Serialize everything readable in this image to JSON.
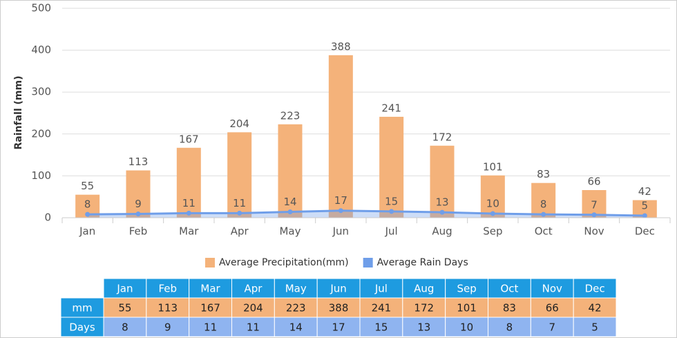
{
  "chart_data": {
    "type": "bar",
    "y_label": "Rainfall (mm)",
    "categories": [
      "Jan",
      "Feb",
      "Mar",
      "Apr",
      "May",
      "Jun",
      "Jul",
      "Aug",
      "Sep",
      "Oct",
      "Nov",
      "Dec"
    ],
    "series": [
      {
        "name": "Average Precipitation(mm)",
        "type": "bar",
        "color": "#f4b27a",
        "values": [
          55,
          113,
          167,
          204,
          223,
          388,
          241,
          172,
          101,
          83,
          66,
          42
        ]
      },
      {
        "name": "Average Rain Days",
        "type": "area",
        "color": "#6f9ee9",
        "values": [
          8,
          9,
          11,
          11,
          14,
          17,
          15,
          13,
          10,
          8,
          7,
          5
        ]
      }
    ],
    "ylim": [
      0,
      500
    ],
    "yticks": [
      0,
      100,
      200,
      300,
      400,
      500
    ],
    "grid": true,
    "legend": "bottom",
    "table_row_labels": [
      "mm",
      "Days"
    ]
  }
}
